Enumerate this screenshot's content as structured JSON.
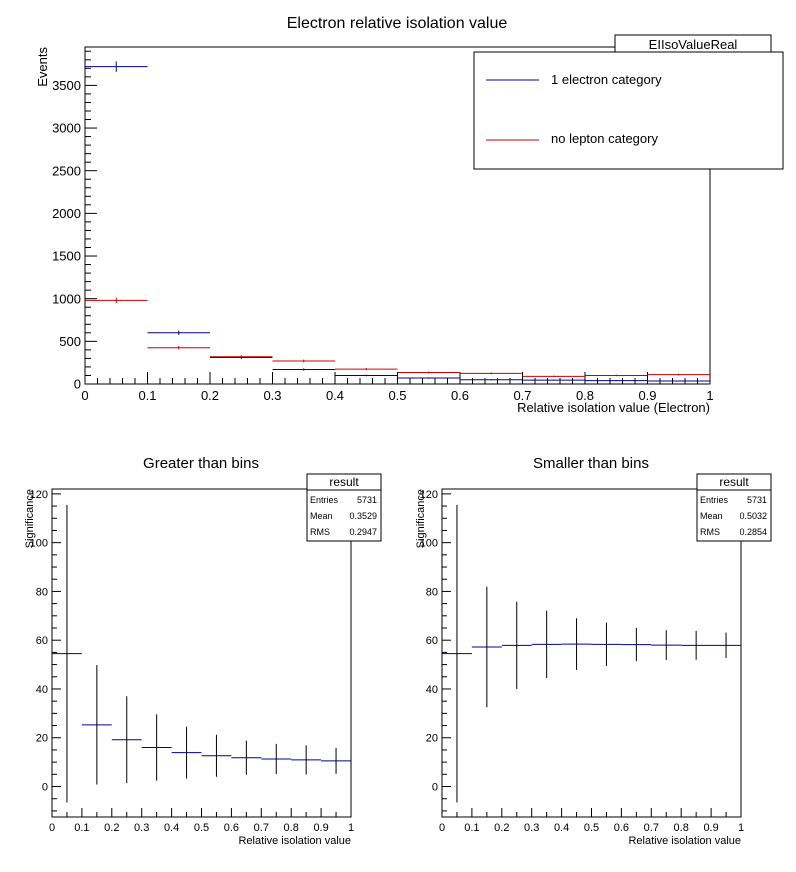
{
  "colors": {
    "electron": "#000099",
    "nolepton": "#cc0000",
    "frame": "#000000"
  },
  "chart_data": [
    {
      "type": "histogram",
      "title": "Electron relative isolation value",
      "xlabel": "Relative isolation value (Electron)",
      "ylabel": "Events",
      "xlim": [
        0,
        1
      ],
      "ylim": [
        0,
        3950
      ],
      "xticks": [
        "0",
        "0.1",
        "0.2",
        "0.3",
        "0.4",
        "0.5",
        "0.6",
        "0.7",
        "0.8",
        "0.9",
        "1"
      ],
      "yticks": [
        "0",
        "500",
        "1000",
        "1500",
        "2000",
        "2500",
        "3000",
        "3500"
      ],
      "stats_title": "EIIsoValueReal",
      "legend": [
        "1 electron category",
        "no lepton category"
      ],
      "bin_width": 0.1,
      "series": [
        {
          "name": "1 electron category",
          "x": [
            0.05,
            0.15,
            0.25,
            0.35,
            0.45,
            0.55,
            0.65,
            0.75,
            0.85,
            0.95
          ],
          "values": [
            3720,
            600,
            310,
            170,
            100,
            70,
            50,
            45,
            40,
            35
          ]
        },
        {
          "name": "no lepton category",
          "x": [
            0.05,
            0.15,
            0.25,
            0.35,
            0.45,
            0.55,
            0.65,
            0.75,
            0.85,
            0.95
          ],
          "values": [
            980,
            425,
            320,
            270,
            175,
            135,
            125,
            90,
            100,
            110
          ]
        }
      ]
    },
    {
      "type": "errorbar",
      "title": "Greater than bins",
      "xlabel": "Relative isolation value",
      "ylabel": "Significance",
      "xlim": [
        0,
        1
      ],
      "ylim": [
        -12.5,
        122
      ],
      "xticks": [
        "0",
        "0.1",
        "0.2",
        "0.3",
        "0.4",
        "0.5",
        "0.6",
        "0.7",
        "0.8",
        "0.9",
        "1"
      ],
      "yticks": [
        "0",
        "20",
        "40",
        "60",
        "80",
        "100",
        "120"
      ],
      "stats": {
        "title": "result",
        "rows": [
          [
            "Entries",
            "5731"
          ],
          [
            "Mean",
            "0.3529"
          ],
          [
            "RMS",
            "0.2947"
          ]
        ]
      },
      "bin_width": 0.1,
      "x": [
        0.05,
        0.15,
        0.25,
        0.35,
        0.45,
        0.55,
        0.65,
        0.75,
        0.85,
        0.95
      ],
      "values": [
        54.5,
        25.3,
        19.2,
        16.0,
        13.9,
        12.6,
        11.8,
        11.3,
        10.9,
        10.5
      ],
      "errors": [
        61,
        24.5,
        17.8,
        13.6,
        10.6,
        8.6,
        7.0,
        6.2,
        6.0,
        5.3
      ]
    },
    {
      "type": "errorbar",
      "title": "Smaller than bins",
      "xlabel": "Relative isolation value",
      "ylabel": "Significance",
      "xlim": [
        0,
        1
      ],
      "ylim": [
        -12.5,
        122
      ],
      "xticks": [
        "0",
        "0.1",
        "0.2",
        "0.3",
        "0.4",
        "0.5",
        "0.6",
        "0.7",
        "0.8",
        "0.9",
        "1"
      ],
      "yticks": [
        "0",
        "20",
        "40",
        "60",
        "80",
        "100",
        "120"
      ],
      "stats": {
        "title": "result",
        "rows": [
          [
            "Entries",
            "5731"
          ],
          [
            "Mean",
            "0.5032"
          ],
          [
            "RMS",
            "0.2854"
          ]
        ]
      },
      "bin_width": 0.1,
      "x": [
        0.05,
        0.15,
        0.25,
        0.35,
        0.45,
        0.55,
        0.65,
        0.75,
        0.85,
        0.95
      ],
      "values": [
        54.5,
        57.2,
        57.9,
        58.3,
        58.4,
        58.3,
        58.2,
        58.0,
        57.9,
        57.9
      ],
      "errors": [
        61,
        24.7,
        17.9,
        13.8,
        10.6,
        8.9,
        6.8,
        6.1,
        5.9,
        5.2
      ]
    }
  ]
}
